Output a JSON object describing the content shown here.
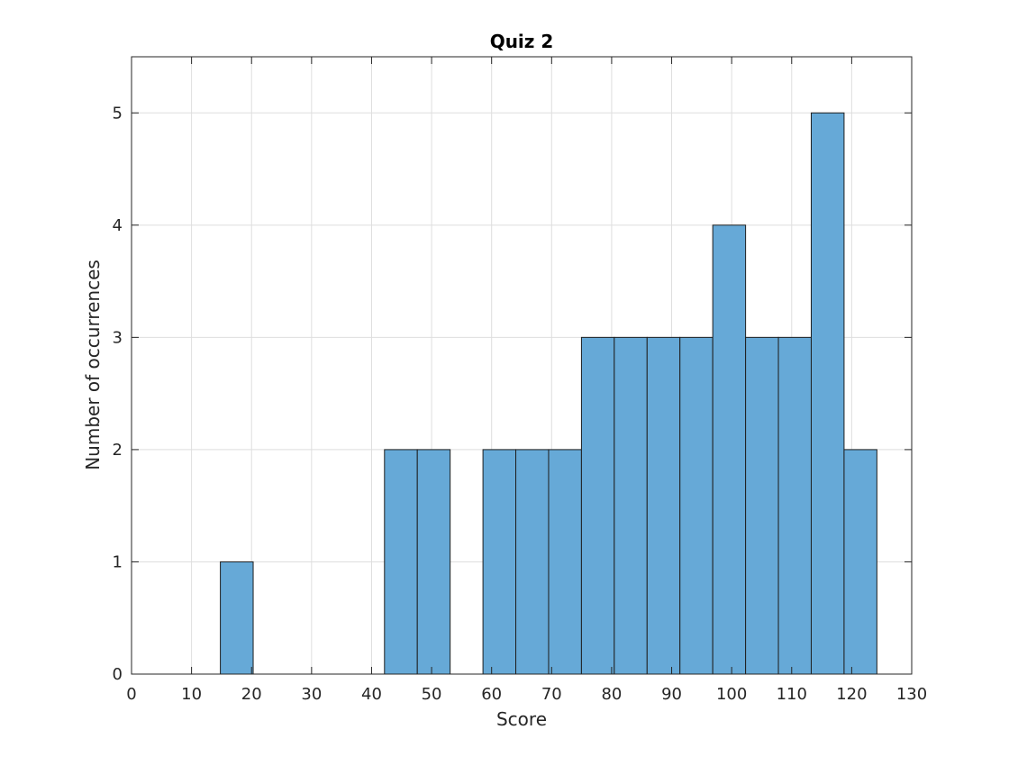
{
  "chart_data": {
    "type": "bar",
    "subtype": "histogram",
    "title": "Quiz 2",
    "xlabel": "Score",
    "ylabel": "Number of occurrences",
    "xlim": [
      0,
      130
    ],
    "ylim": [
      0,
      5.5
    ],
    "xticks": [
      "0",
      "10",
      "20",
      "30",
      "40",
      "50",
      "60",
      "70",
      "80",
      "90",
      "100",
      "110",
      "120",
      "130"
    ],
    "yticks": [
      "0",
      "1",
      "2",
      "3",
      "4",
      "5"
    ],
    "grid": true,
    "legend": "none",
    "bin_edges": [
      14.8,
      20.27,
      25.74,
      31.21,
      36.68,
      42.15,
      47.62,
      53.09,
      58.56,
      64.03,
      69.5,
      74.97,
      80.44,
      85.91,
      91.38,
      96.85,
      102.32,
      107.79,
      113.26,
      118.73,
      124.2
    ],
    "values": [
      1,
      0,
      0,
      0,
      0,
      2,
      2,
      0,
      2,
      2,
      2,
      3,
      3,
      3,
      3,
      4,
      3,
      3,
      5,
      2
    ],
    "bar_color": "#66a9d7",
    "edge_color": "#1f1f1f"
  }
}
